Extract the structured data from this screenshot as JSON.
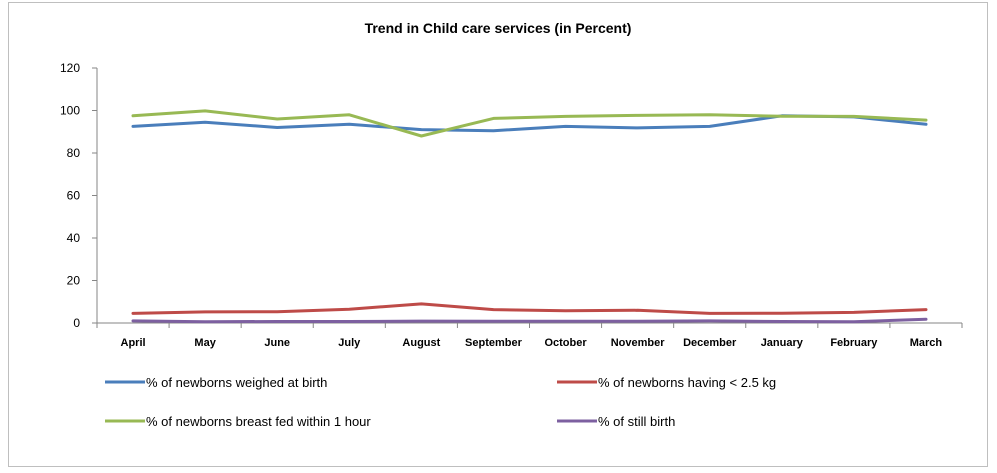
{
  "chart_data": {
    "type": "line",
    "title": "Trend in Child care services  (in Percent)",
    "xlabel": "",
    "ylabel": "",
    "ylim": [
      0,
      120
    ],
    "yticks": [
      0,
      20,
      40,
      60,
      80,
      100,
      120
    ],
    "grid": false,
    "legend_position": "bottom",
    "categories": [
      "April",
      "May",
      "June",
      "July",
      "August",
      "September",
      "October",
      "November",
      "December",
      "January",
      "February",
      "March"
    ],
    "series": [
      {
        "name": "% of newborns weighed at birth",
        "color": "#4a7ebb",
        "values": [
          92.5,
          94.5,
          92,
          93.5,
          91,
          90.5,
          92.5,
          91.8,
          92.5,
          97.5,
          97,
          93.5
        ]
      },
      {
        "name": "% of newborns having < 2.5 kg",
        "color": "#be4b48",
        "values": [
          4.5,
          5.2,
          5.3,
          6.5,
          9,
          6.3,
          5.8,
          6,
          4.5,
          4.6,
          5,
          6.3
        ]
      },
      {
        "name": "% of newborns breast fed within 1 hour",
        "color": "#98b954",
        "values": [
          97.5,
          99.8,
          96,
          98,
          88,
          96.3,
          97.2,
          97.7,
          98,
          97.3,
          97.2,
          95.5
        ]
      },
      {
        "name": "% of still birth",
        "color": "#7d60a0",
        "values": [
          1,
          0.6,
          0.7,
          0.7,
          0.9,
          0.8,
          0.8,
          0.8,
          1,
          0.7,
          0.6,
          1.8
        ]
      }
    ]
  }
}
